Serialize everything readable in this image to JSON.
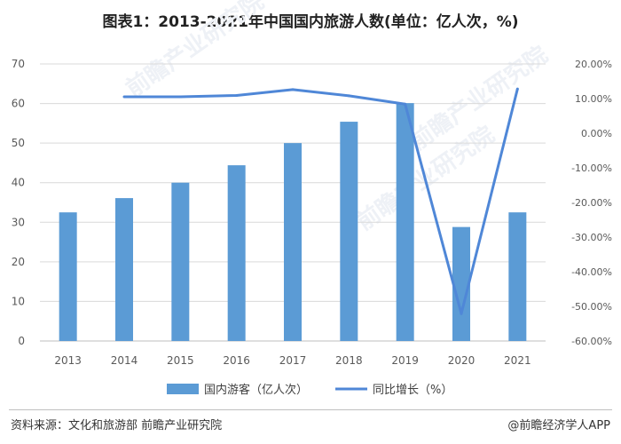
{
  "title": "图表1：2013-2021年中国国内旅游人数(单位：亿人次，%)",
  "source": "资料来源：文化和旅游部 前瞻产业研究院",
  "brand": "@前瞻经济学人APP",
  "watermark": "前瞻产业研究院",
  "colors": {
    "bar": "#5b9bd5",
    "line": "#4f87d7",
    "grid": "#d9d9d9",
    "axis_text": "#595959"
  },
  "chart_data": {
    "type": "bar",
    "categories": [
      "2013",
      "2014",
      "2015",
      "2016",
      "2017",
      "2018",
      "2019",
      "2020",
      "2021"
    ],
    "series": [
      {
        "name": "国内游客（亿人次）",
        "type": "bar",
        "axis": "left",
        "values": [
          32.5,
          36.1,
          40.0,
          44.4,
          50.0,
          55.4,
          60.1,
          28.8,
          32.5
        ]
      },
      {
        "name": "同比增长（%）",
        "type": "line",
        "axis": "right",
        "values": [
          null,
          10.5,
          10.5,
          10.9,
          12.6,
          10.8,
          8.4,
          -52.1,
          12.8
        ]
      }
    ],
    "y_left": {
      "min": 0,
      "max": 70,
      "ticks": [
        "0",
        "10",
        "20",
        "30",
        "40",
        "50",
        "60",
        "70"
      ]
    },
    "y_right": {
      "min": -60,
      "max": 20,
      "ticks": [
        "-60.00%",
        "-50.00%",
        "-40.00%",
        "-30.00%",
        "-20.00%",
        "-10.00%",
        "0.00%",
        "10.00%",
        "20.00%"
      ]
    },
    "grid": true,
    "legend_position": "bottom"
  }
}
